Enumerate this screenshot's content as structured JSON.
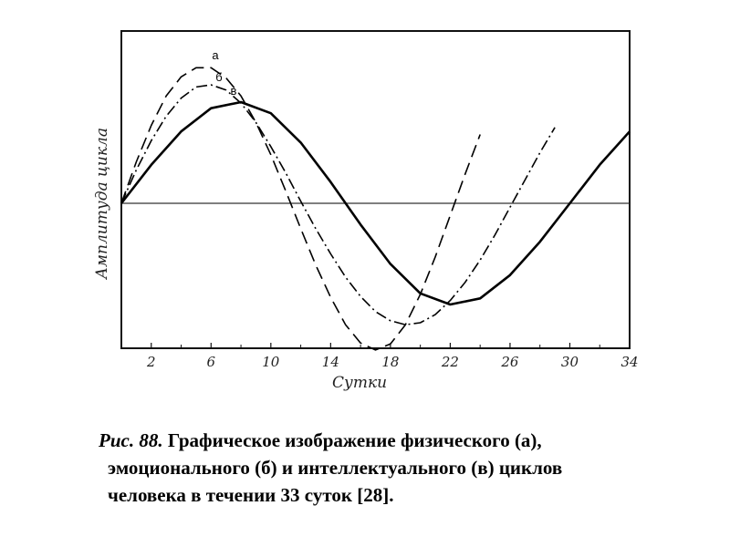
{
  "chart_data": {
    "type": "line",
    "xlabel": "Сутки",
    "ylabel": "Амплитуда цикла",
    "x_ticks": [
      "2",
      "6",
      "10",
      "14",
      "18",
      "22",
      "26",
      "30",
      "34"
    ],
    "xlim": [
      0,
      34
    ],
    "ylim": [
      -1.45,
      1.45
    ],
    "grid": false,
    "series": [
      {
        "name": "а",
        "style": "dashed",
        "x": [
          0,
          1,
          2,
          3,
          4,
          5,
          6,
          7,
          8,
          9,
          10,
          11,
          12,
          13,
          14,
          15,
          16,
          17,
          18,
          19,
          20,
          21,
          22,
          23,
          24
        ],
        "y": [
          0,
          0.41,
          0.77,
          1.06,
          1.25,
          1.34,
          1.34,
          1.24,
          1.06,
          0.8,
          0.48,
          0.12,
          -0.25,
          -0.61,
          -0.93,
          -1.2,
          -1.38,
          -1.45,
          -1.39,
          -1.2,
          -0.9,
          -0.53,
          -0.12,
          0.29,
          0.68
        ]
      },
      {
        "name": "б",
        "style": "dash-dot",
        "x": [
          0,
          1,
          2,
          3,
          4,
          5,
          6,
          7,
          8,
          9,
          10,
          11,
          12,
          13,
          14,
          15,
          16,
          17,
          18,
          19,
          20,
          21,
          22,
          23,
          24,
          25,
          26,
          27,
          28,
          29
        ],
        "y": [
          0,
          0.33,
          0.62,
          0.86,
          1.04,
          1.15,
          1.17,
          1.12,
          0.99,
          0.8,
          0.56,
          0.3,
          0.02,
          -0.25,
          -0.5,
          -0.73,
          -0.92,
          -1.07,
          -1.16,
          -1.2,
          -1.18,
          -1.1,
          -0.96,
          -0.78,
          -0.56,
          -0.31,
          -0.04,
          0.23,
          0.5,
          0.75
        ]
      },
      {
        "name": "в",
        "style": "solid",
        "x": [
          0,
          2,
          4,
          6,
          8,
          10,
          12,
          14,
          16,
          18,
          20,
          22,
          24,
          26,
          28,
          30,
          32,
          34
        ],
        "y": [
          0,
          0.38,
          0.71,
          0.94,
          1.0,
          0.89,
          0.6,
          0.21,
          -0.21,
          -0.6,
          -0.89,
          -1.0,
          -0.94,
          -0.71,
          -0.38,
          0,
          0.38,
          0.71
        ]
      }
    ],
    "curve_labels": [
      "а",
      "б",
      "в"
    ]
  },
  "caption": {
    "fig_number": "Рис. 88.",
    "line1": " Графическое изображение физического (а),",
    "line2": "эмоционального (б) и интеллектуального (в) циклов",
    "line3": "человека в течении 33 суток [28]."
  }
}
